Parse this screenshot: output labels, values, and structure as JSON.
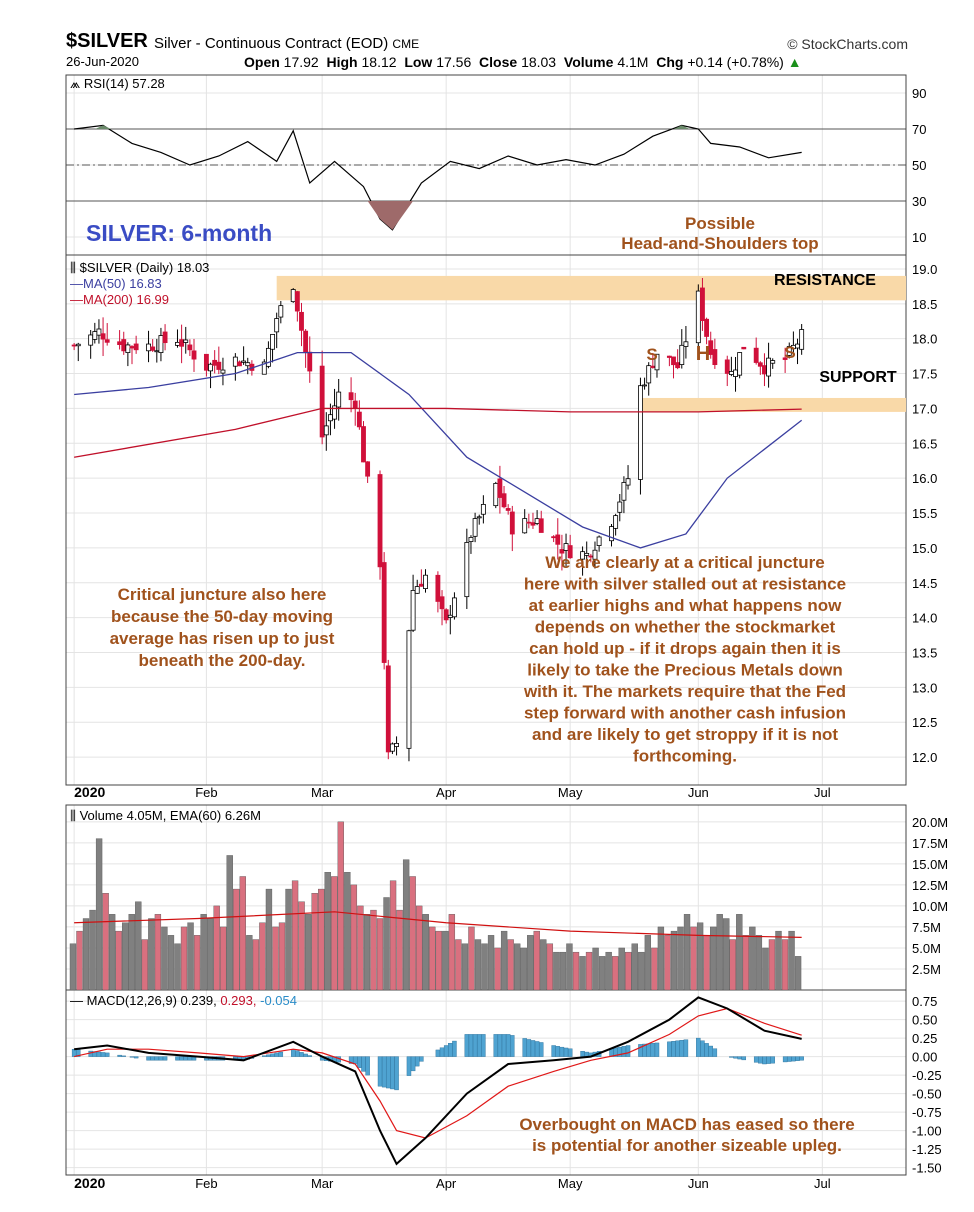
{
  "header": {
    "symbol": "$SILVER",
    "description": "Silver - Continuous Contract (EOD)",
    "exchange": "CME",
    "source": "© StockCharts.com",
    "date": "26-Jun-2020",
    "open_label": "Open",
    "open": "17.92",
    "high_label": "High",
    "high": "18.12",
    "low_label": "Low",
    "low": "17.56",
    "close_label": "Close",
    "close": "18.03",
    "volume_label": "Volume",
    "volume": "4.1M",
    "chg_label": "Chg",
    "chg": "+0.14 (+0.78%)"
  },
  "colors": {
    "up": "#ffffff",
    "down": "#d0103a",
    "ma50": "#3b3fa0",
    "ma200": "#c0102a",
    "band": "#f9d9a8",
    "annotation": "#a0521c",
    "macd_hist": "#4fa3d1",
    "vol_up": "#808080",
    "vol_down": "#d9707f"
  },
  "chart_data": [
    {
      "type": "line",
      "panel": "rsi",
      "legend": "RSI(14) 57.28",
      "yticks": [
        10,
        30,
        50,
        70,
        90
      ],
      "reference_lines": [
        30,
        50,
        70
      ],
      "ylim": [
        0,
        100
      ],
      "x": [
        "2020-01-02",
        "2020-01-09",
        "2020-01-16",
        "2020-01-23",
        "2020-01-30",
        "2020-02-06",
        "2020-02-13",
        "2020-02-20",
        "2020-02-24",
        "2020-02-28",
        "2020-03-05",
        "2020-03-12",
        "2020-03-16",
        "2020-03-19",
        "2020-03-26",
        "2020-04-02",
        "2020-04-09",
        "2020-04-16",
        "2020-04-23",
        "2020-04-30",
        "2020-05-07",
        "2020-05-14",
        "2020-05-21",
        "2020-05-28",
        "2020-06-01",
        "2020-06-04",
        "2020-06-11",
        "2020-06-18",
        "2020-06-26"
      ],
      "values": [
        70,
        72,
        62,
        57,
        50,
        55,
        63,
        52,
        69,
        40,
        52,
        38,
        20,
        14,
        40,
        52,
        48,
        55,
        50,
        53,
        50,
        56,
        66,
        72,
        70,
        62,
        60,
        54,
        57
      ]
    },
    {
      "type": "candlestick",
      "panel": "price",
      "legend": "$SILVER (Daily) 18.03",
      "ma50_legend": "MA(50) 16.83",
      "ma200_legend": "MA(200) 16.99",
      "yticks": [
        12.0,
        12.5,
        13.0,
        13.5,
        14.0,
        14.5,
        15.0,
        15.5,
        16.0,
        16.5,
        17.0,
        17.5,
        18.0,
        18.5,
        19.0
      ],
      "ylim": [
        11.6,
        19.2
      ],
      "x_month_labels": [
        "2020",
        "Feb",
        "Mar",
        "Apr",
        "May",
        "Jun",
        "Jul"
      ],
      "close_path": [
        [
          "2020-01-02",
          17.9
        ],
        [
          "2020-01-08",
          18.1
        ],
        [
          "2020-01-14",
          17.9
        ],
        [
          "2020-01-20",
          17.9
        ],
        [
          "2020-01-27",
          18.0
        ],
        [
          "2020-02-03",
          17.6
        ],
        [
          "2020-02-10",
          17.7
        ],
        [
          "2020-02-17",
          17.6
        ],
        [
          "2020-02-20",
          18.3
        ],
        [
          "2020-02-24",
          18.8
        ],
        [
          "2020-02-27",
          17.8
        ],
        [
          "2020-03-02",
          16.6
        ],
        [
          "2020-03-06",
          17.2
        ],
        [
          "2020-03-10",
          17.1
        ],
        [
          "2020-03-12",
          16.3
        ],
        [
          "2020-03-16",
          14.8
        ],
        [
          "2020-03-18",
          12.0
        ],
        [
          "2020-03-20",
          12.2
        ],
        [
          "2020-03-24",
          14.4
        ],
        [
          "2020-03-27",
          14.6
        ],
        [
          "2020-04-01",
          13.9
        ],
        [
          "2020-04-07",
          15.2
        ],
        [
          "2020-04-13",
          15.9
        ],
        [
          "2020-04-17",
          15.3
        ],
        [
          "2020-04-23",
          15.4
        ],
        [
          "2020-04-29",
          15.0
        ],
        [
          "2020-05-05",
          14.9
        ],
        [
          "2020-05-11",
          15.4
        ],
        [
          "2020-05-15",
          16.0
        ],
        [
          "2020-05-18",
          17.3
        ],
        [
          "2020-05-22",
          17.8
        ],
        [
          "2020-05-27",
          17.6
        ],
        [
          "2020-06-01",
          18.6
        ],
        [
          "2020-06-04",
          17.8
        ],
        [
          "2020-06-09",
          17.5
        ],
        [
          "2020-06-12",
          17.9
        ],
        [
          "2020-06-17",
          17.6
        ],
        [
          "2020-06-22",
          17.7
        ],
        [
          "2020-06-26",
          18.03
        ]
      ],
      "ma50": [
        [
          "2020-01-02",
          17.2
        ],
        [
          "2020-01-20",
          17.3
        ],
        [
          "2020-02-10",
          17.5
        ],
        [
          "2020-02-25",
          17.8
        ],
        [
          "2020-03-09",
          17.8
        ],
        [
          "2020-03-23",
          17.2
        ],
        [
          "2020-04-06",
          16.3
        ],
        [
          "2020-04-20",
          15.8
        ],
        [
          "2020-05-04",
          15.3
        ],
        [
          "2020-05-18",
          15.0
        ],
        [
          "2020-05-29",
          15.2
        ],
        [
          "2020-06-08",
          16.0
        ],
        [
          "2020-06-26",
          16.83
        ]
      ],
      "ma200": [
        [
          "2020-01-02",
          16.3
        ],
        [
          "2020-02-10",
          16.7
        ],
        [
          "2020-03-02",
          17.0
        ],
        [
          "2020-04-01",
          17.0
        ],
        [
          "2020-05-01",
          16.95
        ],
        [
          "2020-06-01",
          16.95
        ],
        [
          "2020-06-26",
          16.99
        ]
      ],
      "resistance_zone": [
        18.55,
        18.9
      ],
      "support_zone": [
        16.95,
        17.15
      ],
      "labels": {
        "resistance": "RESISTANCE",
        "support": "SUPPORT",
        "left_shoulder": "S",
        "head": "H",
        "right_shoulder": "S"
      }
    },
    {
      "type": "bar",
      "panel": "volume",
      "legend": "Volume 4.05M, EMA(60) 6.26M",
      "yticks": [
        "2.5M",
        "5.0M",
        "7.5M",
        "10.0M",
        "12.5M",
        "15.0M",
        "17.5M",
        "20.0M"
      ],
      "ylim": [
        0,
        20
      ],
      "volume_m": [
        5.5,
        7.0,
        8.5,
        9.5,
        18,
        11.5,
        9.0,
        7.0,
        8.0,
        9.0,
        10.5,
        6.0,
        8.5,
        9.0,
        7.5,
        6.5,
        5.5,
        7.5,
        8.0,
        6.5,
        9.0,
        8.5,
        10.0,
        7.5,
        16.0,
        12.0,
        13.5,
        6.5,
        6.0,
        8.0,
        12.0,
        7.5,
        8.0,
        12.0,
        13.0,
        10.5,
        9.0,
        11.5,
        12.0,
        14.0,
        13.5,
        20.0,
        14.0,
        12.5,
        10.0,
        9.0,
        9.5,
        8.5,
        11.0,
        13.0,
        9.5,
        15.5,
        13.5,
        10.0,
        9.0,
        7.5,
        7.0,
        7.0,
        9.0,
        6.0,
        5.5,
        7.5,
        6.0,
        5.5,
        6.5,
        5.0,
        7.0,
        6.0,
        5.5,
        5.0,
        6.5,
        7.0,
        6.0,
        5.5,
        4.5,
        4.5,
        5.5,
        4.5,
        4.0,
        4.5,
        5.0,
        4.0,
        4.5,
        4.0,
        5.0,
        4.5,
        5.5,
        4.5,
        6.5,
        5.0,
        7.5,
        6.5,
        7.0,
        7.5,
        9.0,
        7.5,
        8.0,
        6.5,
        7.5,
        9.0,
        8.5,
        6.0,
        9.0,
        6.5,
        7.5,
        6.5,
        5.0,
        6.0,
        7.0,
        6.0,
        7.0,
        4.0
      ],
      "ema60": [
        [
          "2020-01-02",
          8.0
        ],
        [
          "2020-02-01",
          8.5
        ],
        [
          "2020-03-05",
          9.3
        ],
        [
          "2020-04-01",
          8.0
        ],
        [
          "2020-05-01",
          7.0
        ],
        [
          "2020-06-01",
          6.5
        ],
        [
          "2020-06-26",
          6.26
        ]
      ]
    },
    {
      "type": "line",
      "panel": "macd",
      "legend_macd": "MACD(12,26,9) 0.239,",
      "legend_signal": "0.293,",
      "legend_hist": "-0.054",
      "yticks": [
        0.75,
        0.5,
        0.25,
        0.0,
        -0.25,
        -0.5,
        -0.75,
        -1.0,
        -1.25,
        -1.5
      ],
      "ylim": [
        -1.6,
        0.9
      ],
      "x": [
        "2020-01-02",
        "2020-01-10",
        "2020-01-20",
        "2020-02-01",
        "2020-02-12",
        "2020-02-24",
        "2020-03-02",
        "2020-03-10",
        "2020-03-16",
        "2020-03-20",
        "2020-03-27",
        "2020-04-06",
        "2020-04-16",
        "2020-04-27",
        "2020-05-06",
        "2020-05-15",
        "2020-05-25",
        "2020-06-01",
        "2020-06-08",
        "2020-06-17",
        "2020-06-26"
      ],
      "macd": [
        0.1,
        0.15,
        0.05,
        0.0,
        -0.05,
        0.2,
        0.0,
        -0.2,
        -1.0,
        -1.45,
        -1.1,
        -0.5,
        -0.1,
        -0.05,
        0.0,
        0.2,
        0.5,
        0.8,
        0.65,
        0.35,
        0.24
      ],
      "signal": [
        0.0,
        0.1,
        0.1,
        0.05,
        0.0,
        0.1,
        0.05,
        -0.1,
        -0.6,
        -1.0,
        -1.1,
        -0.8,
        -0.4,
        -0.2,
        -0.05,
        0.05,
        0.3,
        0.55,
        0.65,
        0.45,
        0.29
      ],
      "histogram": [
        0.1,
        0.05,
        -0.05,
        -0.05,
        -0.05,
        0.1,
        -0.05,
        -0.1,
        -0.4,
        -0.45,
        0.0,
        0.3,
        0.3,
        0.15,
        0.05,
        0.15,
        0.2,
        0.25,
        0.0,
        -0.1,
        -0.05
      ]
    }
  ],
  "annotations": {
    "title": "SILVER: 6-month",
    "hs_line1": "Possible",
    "hs_line2": "Head-and-Shoulders top",
    "left_note": [
      "Critical juncture also here",
      "because the 50-day moving",
      "average has risen up to just",
      "beneath the 200-day."
    ],
    "main_note": [
      "We are clearly at a critical juncture",
      "here with silver stalled out at resistance",
      "at earlier highs and what happens now",
      "depends on whether the stockmarket",
      "can hold up - if it drops again then it is",
      "likely to take the Precious Metals down",
      "with it. The markets require that the Fed",
      "step forward with another cash infusion",
      "and are likely to get stroppy if it is not",
      "forthcoming."
    ],
    "macd_note": [
      "Overbought on MACD has eased so there",
      "is potential for another sizeable upleg."
    ]
  }
}
